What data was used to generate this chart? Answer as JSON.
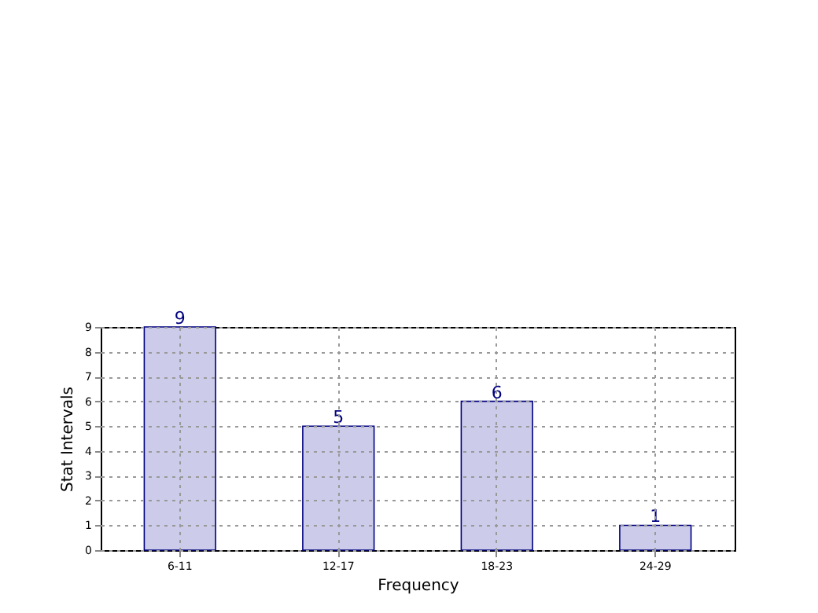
{
  "chart_data": {
    "type": "bar",
    "xlabel": "Frequency",
    "ylabel": "Stat Intervals",
    "categories": [
      "6-11",
      "12-17",
      "18-23",
      "24-29"
    ],
    "values": [
      9,
      5,
      6,
      1
    ],
    "color": "#ccccea",
    "ylim": [
      0,
      9
    ],
    "yticks": [
      0,
      1,
      2,
      3,
      4,
      5,
      6,
      7,
      8,
      9
    ],
    "grid": true,
    "data_labels": true
  }
}
